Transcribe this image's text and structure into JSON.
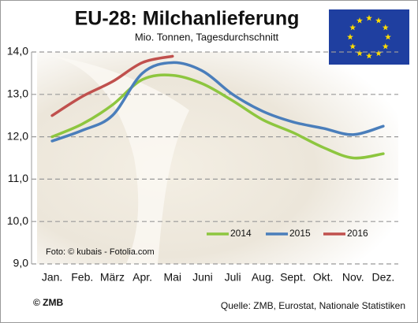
{
  "chart_data": {
    "type": "line",
    "title": "EU-28: Milchanlieferung",
    "subtitle": "Mio. Tonnen, Tagesdurchschnitt",
    "categories": [
      "Jan.",
      "Feb.",
      "März",
      "Apr.",
      "Mai",
      "Juni",
      "Juli",
      "Aug.",
      "Sept.",
      "Okt.",
      "Nov.",
      "Dez."
    ],
    "series": [
      {
        "name": "2014",
        "color": "#8dc63f",
        "values": [
          12.0,
          12.3,
          12.75,
          13.35,
          13.45,
          13.25,
          12.85,
          12.4,
          12.1,
          11.75,
          11.5,
          11.6
        ]
      },
      {
        "name": "2015",
        "color": "#4a7ebb",
        "values": [
          11.9,
          12.15,
          12.5,
          13.5,
          13.75,
          13.55,
          13.0,
          12.6,
          12.35,
          12.2,
          12.05,
          12.25
        ]
      },
      {
        "name": "2016",
        "color": "#c0504d",
        "values": [
          12.5,
          12.95,
          13.3,
          13.75,
          13.9,
          null,
          null,
          null,
          null,
          null,
          null,
          null
        ]
      }
    ],
    "ylim": [
      9,
      14
    ],
    "yticks": [
      {
        "value": 9,
        "label": "9,0"
      },
      {
        "value": 10,
        "label": "10,0"
      },
      {
        "value": 11,
        "label": "11,0"
      },
      {
        "value": 12,
        "label": "12,0"
      },
      {
        "value": 13,
        "label": "13,0"
      },
      {
        "value": 14,
        "label": "14,0"
      }
    ],
    "grid": true,
    "legend": "lower right",
    "photo_credit": "Foto: © kubais - Fotolia.com",
    "copyright": "© ZMB",
    "source": "Quelle: ZMB, Eurostat,  Nationale Statistiken"
  }
}
